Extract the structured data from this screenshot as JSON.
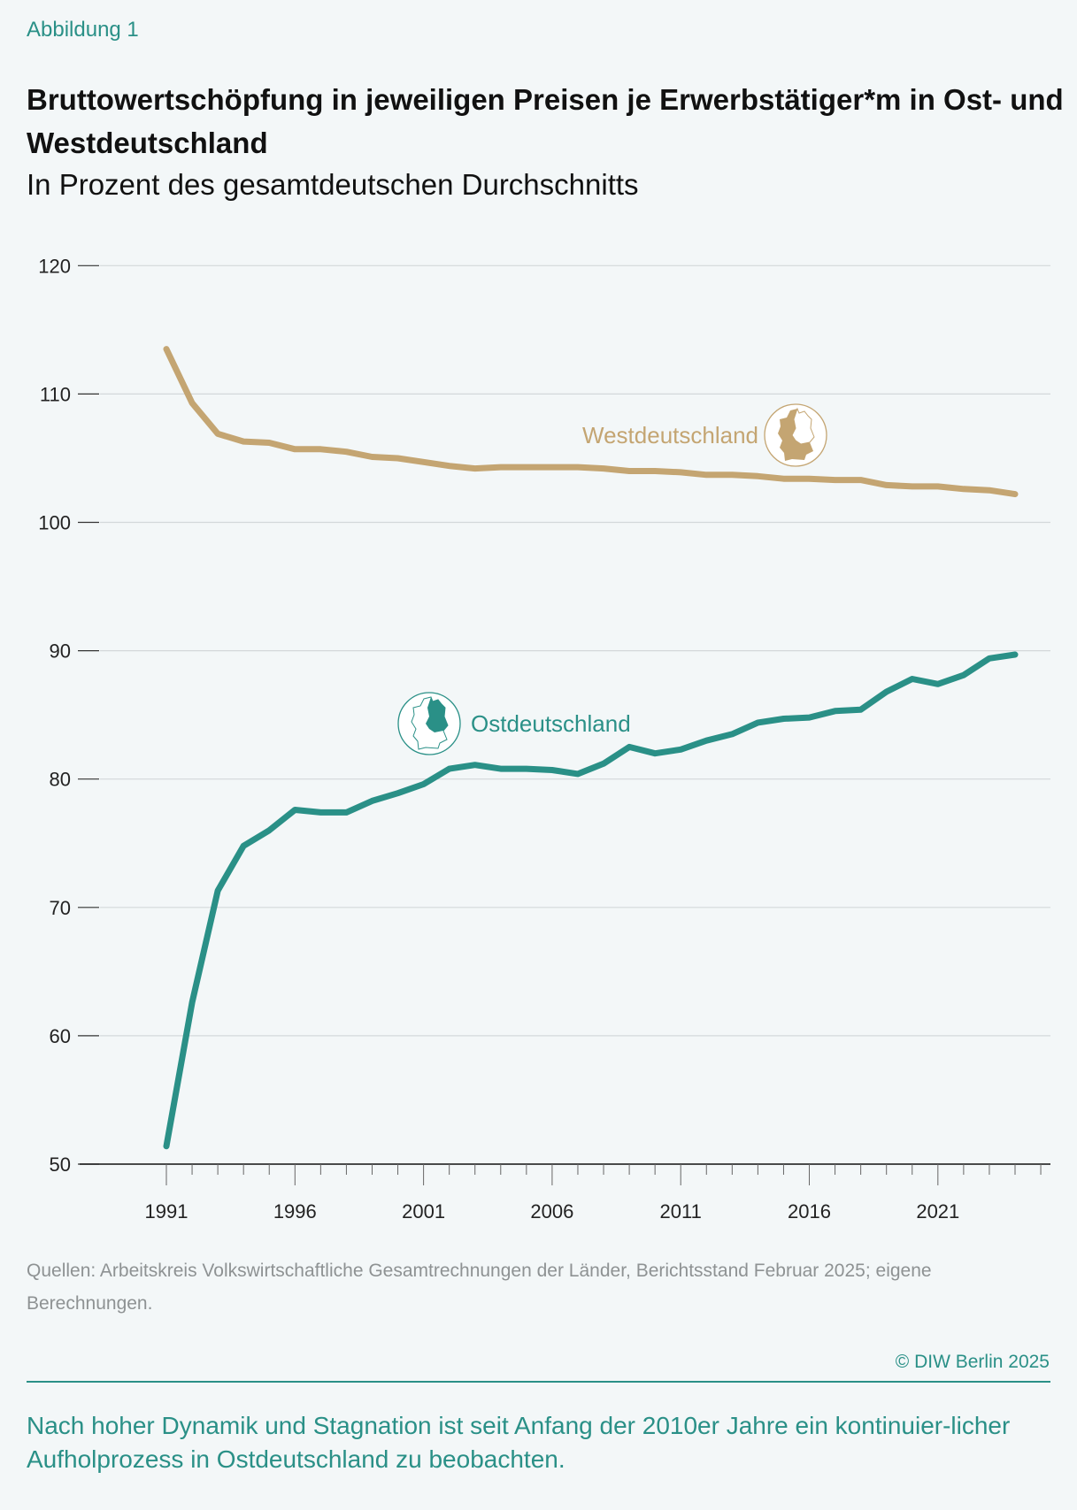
{
  "figure_label": "Abbildung 1",
  "source": "Quellen: Arbeitskreis Volkswirtschaftliche Gesamtrechnungen der Länder, Berichtsstand Februar 2025; eigene Berechnungen.",
  "copyright": "© DIW Berlin 2025",
  "caption": "Nach hoher Dynamik und Stagnation ist seit Anfang der 2010er Jahre ein kontinuier-licher Aufholprozess in Ostdeutschland zu beobachten.",
  "chart_data": {
    "type": "line",
    "title": "Bruttowertschöpfung in jeweiligen Preisen je Erwerbstätiger*m in Ost- und Westdeutschland",
    "subtitle": "In Prozent des gesamtdeutschen Durchschnitts",
    "xlabel": "",
    "ylabel": "",
    "ylim": [
      50,
      120
    ],
    "xlim": [
      1991,
      2024
    ],
    "yticks": [
      "50",
      "60",
      "70",
      "80",
      "90",
      "100",
      "110",
      "120"
    ],
    "xticks": [
      "1991",
      "1996",
      "2001",
      "2006",
      "2011",
      "2016",
      "2021"
    ],
    "grid": true,
    "x": [
      1991,
      1992,
      1993,
      1994,
      1995,
      1996,
      1997,
      1998,
      1999,
      2000,
      2001,
      2002,
      2003,
      2004,
      2005,
      2006,
      2007,
      2008,
      2009,
      2010,
      2011,
      2012,
      2013,
      2014,
      2015,
      2016,
      2017,
      2018,
      2019,
      2020,
      2021,
      2022,
      2023,
      2024
    ],
    "series": [
      {
        "name": "Westdeutschland",
        "color": "#c4a572",
        "icon": "germany-west-map-icon",
        "values": [
          113.5,
          109.3,
          106.9,
          106.3,
          106.2,
          105.7,
          105.7,
          105.5,
          105.1,
          105.0,
          104.7,
          104.4,
          104.2,
          104.3,
          104.3,
          104.3,
          104.3,
          104.2,
          104.0,
          104.0,
          103.9,
          103.7,
          103.7,
          103.6,
          103.4,
          103.4,
          103.3,
          103.3,
          102.9,
          102.8,
          102.8,
          102.6,
          102.5,
          102.2
        ]
      },
      {
        "name": "Ostdeutschland",
        "color": "#2a9087",
        "icon": "germany-east-map-icon",
        "values": [
          51.4,
          62.6,
          71.3,
          74.8,
          76.0,
          77.6,
          77.4,
          77.4,
          78.3,
          78.9,
          79.6,
          80.8,
          81.1,
          80.8,
          80.8,
          80.7,
          80.4,
          81.2,
          82.5,
          82.0,
          82.3,
          83.0,
          83.5,
          84.4,
          84.7,
          84.8,
          85.3,
          85.4,
          86.8,
          87.8,
          87.4,
          88.1,
          89.4,
          89.7
        ]
      }
    ]
  }
}
